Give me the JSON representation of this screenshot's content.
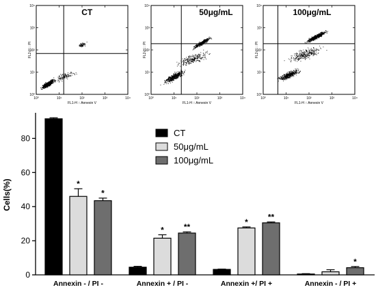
{
  "chart_data": [
    {
      "type": "scatter",
      "panel": "flow-cytometry",
      "title": "CT",
      "xlabel": "FL1-H :: Annexin V",
      "ylabel": "FL2-H :: PI",
      "axis_scale": "log",
      "tick_labels": [
        "10⁰",
        "10¹",
        "10²",
        "10³",
        "10⁴"
      ]
    },
    {
      "type": "scatter",
      "panel": "flow-cytometry",
      "title": "50μg/mL",
      "xlabel": "FL1-H :: Annexin V",
      "ylabel": "FL2-H :: PI",
      "axis_scale": "log",
      "tick_labels": [
        "10⁰",
        "10¹",
        "10²",
        "10³",
        "10⁴"
      ]
    },
    {
      "type": "scatter",
      "panel": "flow-cytometry",
      "title": "100μg/mL",
      "xlabel": "FL1-H :: Annexin V",
      "ylabel": "FL2-H :: PI",
      "axis_scale": "log",
      "tick_labels": [
        "10⁰",
        "10¹",
        "10²",
        "10³",
        "10⁴"
      ]
    },
    {
      "type": "bar",
      "ylabel": "Cells(%)",
      "ylim": [
        0,
        95
      ],
      "yticks": [
        "0",
        "20",
        "40",
        "60",
        "80"
      ],
      "ytick_values": [
        0,
        20,
        40,
        60,
        80
      ],
      "categories": [
        "Annexin - / PI -",
        "Annexin + / PI -",
        "Annexin +/ PI +",
        "Annexin - / PI +"
      ],
      "legend_position": "top-center",
      "series": [
        {
          "name": "CT",
          "color": "#000000",
          "values": [
            91.5,
            4.5,
            3.2,
            0.5
          ],
          "errors": [
            0.6,
            0.5,
            0.2,
            0.2
          ],
          "significance": [
            "",
            "",
            "",
            ""
          ]
        },
        {
          "name": "50μg/mL",
          "color": "#dcdcdc",
          "values": [
            46,
            21.5,
            27.5,
            1.8
          ],
          "errors": [
            4.5,
            2.0,
            0.6,
            1.2
          ],
          "significance": [
            "*",
            "*",
            "*",
            ""
          ]
        },
        {
          "name": "100μg/mL",
          "color": "#6e6e6e",
          "values": [
            43.5,
            24.5,
            30.5,
            4.2
          ],
          "errors": [
            1.5,
            0.7,
            0.5,
            0.7
          ],
          "significance": [
            "*",
            "**",
            "**",
            "*"
          ]
        }
      ]
    }
  ]
}
